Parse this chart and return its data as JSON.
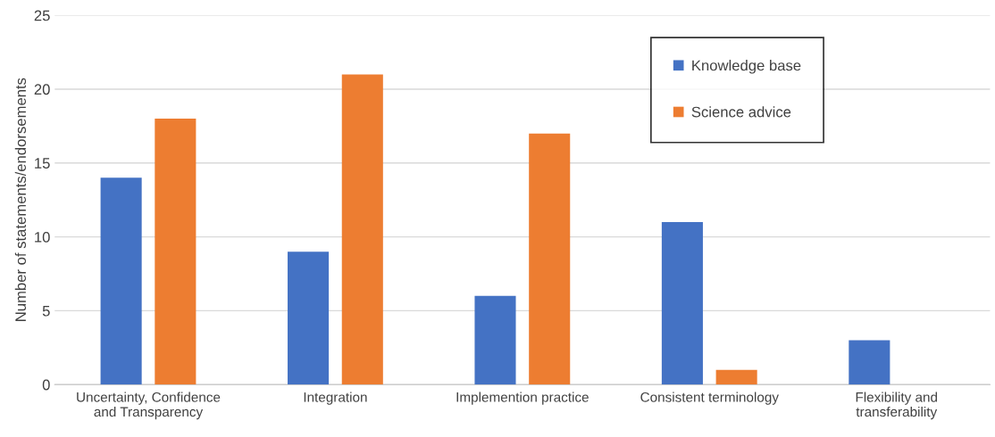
{
  "chart_data": {
    "type": "bar",
    "ylabel": "Number of statements/endorsements",
    "categories": [
      "Uncertainty, Confidence\nand Transparency",
      "Integration",
      "Implemention practice",
      "Consistent terminology",
      "Flexibility and\ntransferability"
    ],
    "series": [
      {
        "name": "Knowledge base",
        "color": "#4472c4",
        "values": [
          14,
          9,
          6,
          11,
          3
        ]
      },
      {
        "name": "Science advice",
        "color": "#ed7d31",
        "values": [
          18,
          21,
          17,
          1,
          null
        ]
      }
    ],
    "ylim": [
      0,
      25
    ],
    "yticks": [
      0,
      5,
      10,
      15,
      20,
      25
    ],
    "grid": "y",
    "legend": "top right"
  }
}
